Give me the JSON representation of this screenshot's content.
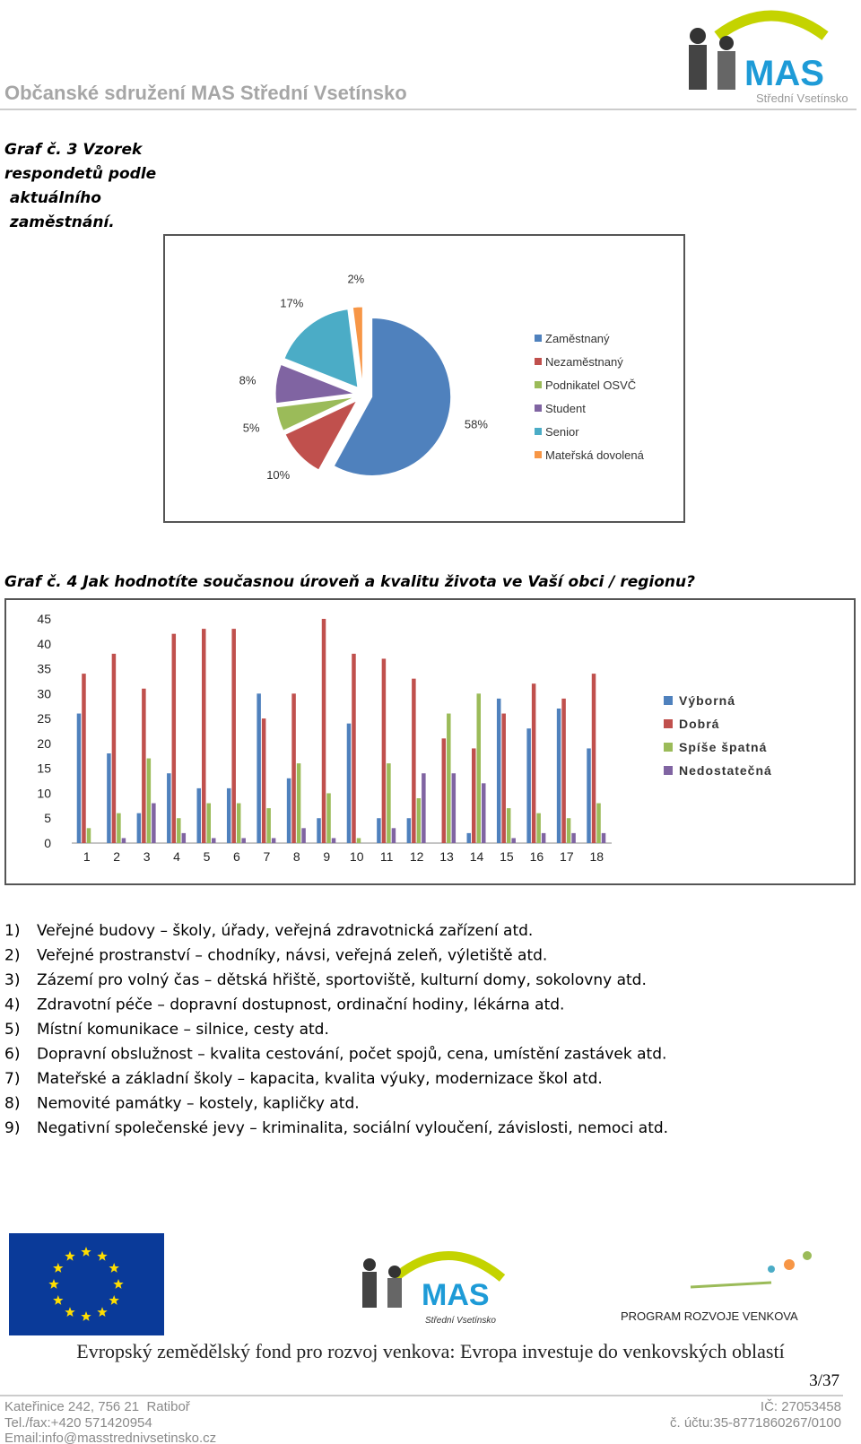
{
  "header": {
    "title": "Občanské sdružení MAS Střední Vsetínsko",
    "logo_text": "MAS",
    "logo_subtext": "Střední Vsetínsko"
  },
  "captions": {
    "graph3": [
      "Graf č. 3 Vzorek",
      "respondetů podle",
      " aktuálního",
      " zaměstnání."
    ],
    "graph4": "Graf č. 4 Jak hodnotíte současnou úroveň a kvalitu života ve Vaší obci / regionu?"
  },
  "chart_data": [
    {
      "type": "pie",
      "categories": [
        "Zaměstnaný",
        "Nezaměstnaný",
        "Podnikatel OSVČ",
        "Student",
        "Senior",
        "Mateřská dovolená"
      ],
      "values": [
        58,
        10,
        5,
        8,
        17,
        2
      ],
      "value_labels": [
        "58%",
        "10%",
        "5%",
        "8%",
        "17%",
        "2%"
      ],
      "colors": [
        "#4f81bd",
        "#c0504d",
        "#9bbb59",
        "#8064a2",
        "#4bacc6",
        "#f79646"
      ],
      "legend": "right"
    },
    {
      "type": "bar",
      "categories": [
        "1",
        "2",
        "3",
        "4",
        "5",
        "6",
        "7",
        "8",
        "9",
        "10",
        "11",
        "12",
        "13",
        "14",
        "15",
        "16",
        "17",
        "18"
      ],
      "series": [
        {
          "name": "Výborná",
          "color": "#4f81bd",
          "values": [
            26,
            18,
            6,
            14,
            11,
            11,
            30,
            13,
            5,
            24,
            5,
            5,
            0,
            2,
            29,
            23,
            27,
            19
          ]
        },
        {
          "name": "Dobrá",
          "color": "#c0504d",
          "values": [
            34,
            38,
            31,
            42,
            43,
            43,
            25,
            30,
            45,
            38,
            37,
            33,
            21,
            19,
            26,
            32,
            29,
            34
          ]
        },
        {
          "name": "Spíše špatná",
          "color": "#9bbb59",
          "values": [
            3,
            6,
            17,
            5,
            8,
            8,
            7,
            16,
            10,
            1,
            16,
            9,
            26,
            30,
            7,
            6,
            5,
            8
          ]
        },
        {
          "name": "Nedostatečná",
          "color": "#8064a2",
          "values": [
            0,
            1,
            8,
            2,
            1,
            1,
            1,
            3,
            1,
            0,
            3,
            14,
            14,
            12,
            1,
            2,
            2,
            2
          ]
        }
      ],
      "ylim": [
        0,
        45
      ],
      "yticks": [
        0,
        5,
        10,
        15,
        20,
        25,
        30,
        35,
        40,
        45
      ],
      "grid": false,
      "legend": "right"
    }
  ],
  "list": [
    {
      "number": "1)",
      "text": "Veřejné budovy – školy, úřady, veřejná zdravotnická zařízení atd."
    },
    {
      "number": "2)",
      "text": "Veřejné prostranství – chodníky, návsi, veřejná zeleň, výletiště atd."
    },
    {
      "number": "3)",
      "text": "Zázemí pro volný čas – dětská hřiště, sportoviště, kulturní domy, sokolovny atd."
    },
    {
      "number": "4)",
      "text": "Zdravotní péče – dopravní dostupnost, ordinační hodiny, lékárna atd."
    },
    {
      "number": "5)",
      "text": "Místní komunikace – silnice, cesty atd."
    },
    {
      "number": "6)",
      "text": "Dopravní obslužnost – kvalita cestování, počet spojů, cena, umístění zastávek atd."
    },
    {
      "number": "7)",
      "text": "Mateřské a základní školy – kapacita, kvalita výuky, modernizace škol atd."
    },
    {
      "number": "8)",
      "text": "Nemovité památky – kostely, kapličky atd."
    },
    {
      "number": "9)",
      "text": "Negativní společenské jevy – kriminalita, sociální vyloučení, závislosti, nemoci atd."
    }
  ],
  "footer": {
    "logo_text": "MAS",
    "logo_subtext": "Střední Vsetínsko",
    "program": "PROGRAM ROZVOJE VENKOVA",
    "banner": "Evropský zemědělský fond pro rozvoj venkova: Evropa investuje do venkovských oblastí",
    "page": "3/37",
    "address": "Kateřinice 242, 756 21  Ratiboř",
    "ic": "IČ: 27053458",
    "tel": "Tel./fax:+420 571420954",
    "account": "č. účtu:35-8771860267/0100",
    "email": "Email:info@masstrednivsetinsko.cz"
  }
}
